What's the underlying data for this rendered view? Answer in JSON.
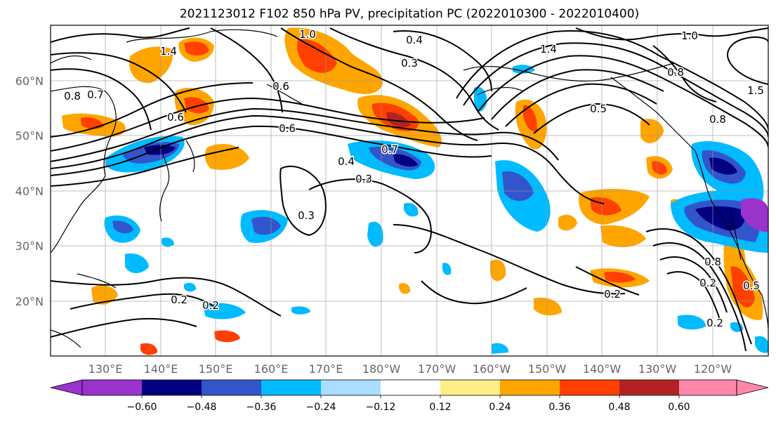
{
  "title": "2021123012 F102 850 hPa PV, precipitation PC (2022010300 - 2022010400)",
  "map": {
    "lat_labels": [
      {
        "text": "60°N",
        "lat": 60
      },
      {
        "text": "50°N",
        "lat": 50
      },
      {
        "text": "40°N",
        "lat": 40
      },
      {
        "text": "30°N",
        "lat": 30
      },
      {
        "text": "20°N",
        "lat": 20
      }
    ],
    "lon_labels": [
      {
        "text": "130°E",
        "lon": 130
      },
      {
        "text": "140°E",
        "lon": 140
      },
      {
        "text": "150°E",
        "lon": 150
      },
      {
        "text": "160°E",
        "lon": 160
      },
      {
        "text": "170°E",
        "lon": 170
      },
      {
        "text": "180°W",
        "lon": 180
      },
      {
        "text": "170°W",
        "lon": 190
      },
      {
        "text": "160°W",
        "lon": 200
      },
      {
        "text": "150°W",
        "lon": 210
      },
      {
        "text": "140°W",
        "lon": 220
      },
      {
        "text": "130°W",
        "lon": 230
      },
      {
        "text": "120°W",
        "lon": 240
      }
    ],
    "lon_range": [
      120,
      250
    ],
    "lat_range": [
      10,
      70
    ],
    "gridlines": true,
    "contour_labels": [
      "1.0",
      "0.4",
      "1.4",
      "0.3",
      "0.7",
      "0.8",
      "0.6",
      "0.4",
      "0.3",
      "0.6",
      "0.7",
      "0.6",
      "0.3",
      "1.4",
      "0.2",
      "0.2",
      "1.0",
      "0.8",
      "1.5",
      "0.5",
      "0.8",
      "0.2",
      "0.8",
      "0.2",
      "0.5",
      "0.2"
    ]
  },
  "colorbar": {
    "ticks": [
      "−0.60",
      "−0.48",
      "−0.36",
      "−0.24",
      "−0.12",
      "0.12",
      "0.24",
      "0.36",
      "0.48",
      "0.60"
    ],
    "colors": [
      "#9933cc",
      "#000080",
      "#3355cc",
      "#00bbff",
      "#aaddff",
      "#ffffff",
      "#ffee88",
      "#ffa500",
      "#ff4000",
      "#b22222",
      "#ff88aa"
    ]
  }
}
